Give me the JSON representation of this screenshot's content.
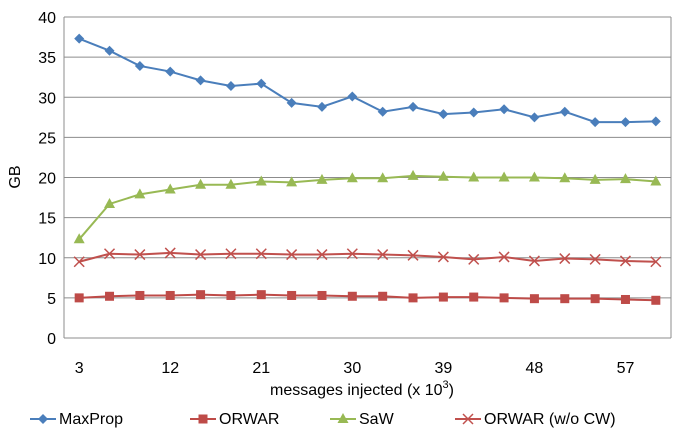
{
  "chart_data": {
    "type": "line",
    "title": "",
    "xlabel": "messages injected (x 10",
    "xlabel_sup": "3",
    "xlabel_close": ")",
    "ylabel": "GB",
    "ylim": [
      0,
      40
    ],
    "yticks": [
      0,
      5,
      10,
      15,
      20,
      25,
      30,
      35,
      40
    ],
    "xticks": [
      3,
      12,
      21,
      30,
      39,
      48,
      57
    ],
    "x": [
      3,
      6,
      9,
      12,
      15,
      18,
      21,
      24,
      27,
      30,
      33,
      36,
      39,
      42,
      45,
      48,
      51,
      54,
      57,
      60
    ],
    "grid": true,
    "legend_position": "bottom",
    "series": [
      {
        "name": "MaxProp",
        "color": "#4a7ebb",
        "marker": "diamond",
        "values": [
          37.3,
          35.8,
          33.9,
          33.2,
          32.1,
          31.4,
          31.7,
          29.3,
          28.8,
          30.1,
          28.2,
          28.8,
          27.9,
          28.1,
          28.5,
          27.5,
          28.2,
          26.9,
          26.9,
          27.0
        ]
      },
      {
        "name": "ORWAR",
        "color": "#be4b48",
        "marker": "square",
        "values": [
          5.0,
          5.2,
          5.3,
          5.3,
          5.4,
          5.3,
          5.4,
          5.3,
          5.3,
          5.2,
          5.2,
          5.0,
          5.1,
          5.1,
          5.0,
          4.9,
          4.9,
          4.9,
          4.8,
          4.7
        ]
      },
      {
        "name": "SaW",
        "color": "#98b954",
        "marker": "triangle",
        "values": [
          12.3,
          16.7,
          17.9,
          18.5,
          19.1,
          19.1,
          19.5,
          19.4,
          19.7,
          19.9,
          19.9,
          20.2,
          20.1,
          20.0,
          20.0,
          20.0,
          19.9,
          19.7,
          19.8,
          19.5
        ]
      },
      {
        "name": "ORWAR (w/o CW)",
        "color": "#c0504d",
        "marker": "x",
        "values": [
          9.5,
          10.5,
          10.4,
          10.6,
          10.4,
          10.5,
          10.5,
          10.4,
          10.4,
          10.5,
          10.4,
          10.3,
          10.1,
          9.8,
          10.1,
          9.6,
          9.9,
          9.8,
          9.6,
          9.5
        ]
      }
    ]
  }
}
